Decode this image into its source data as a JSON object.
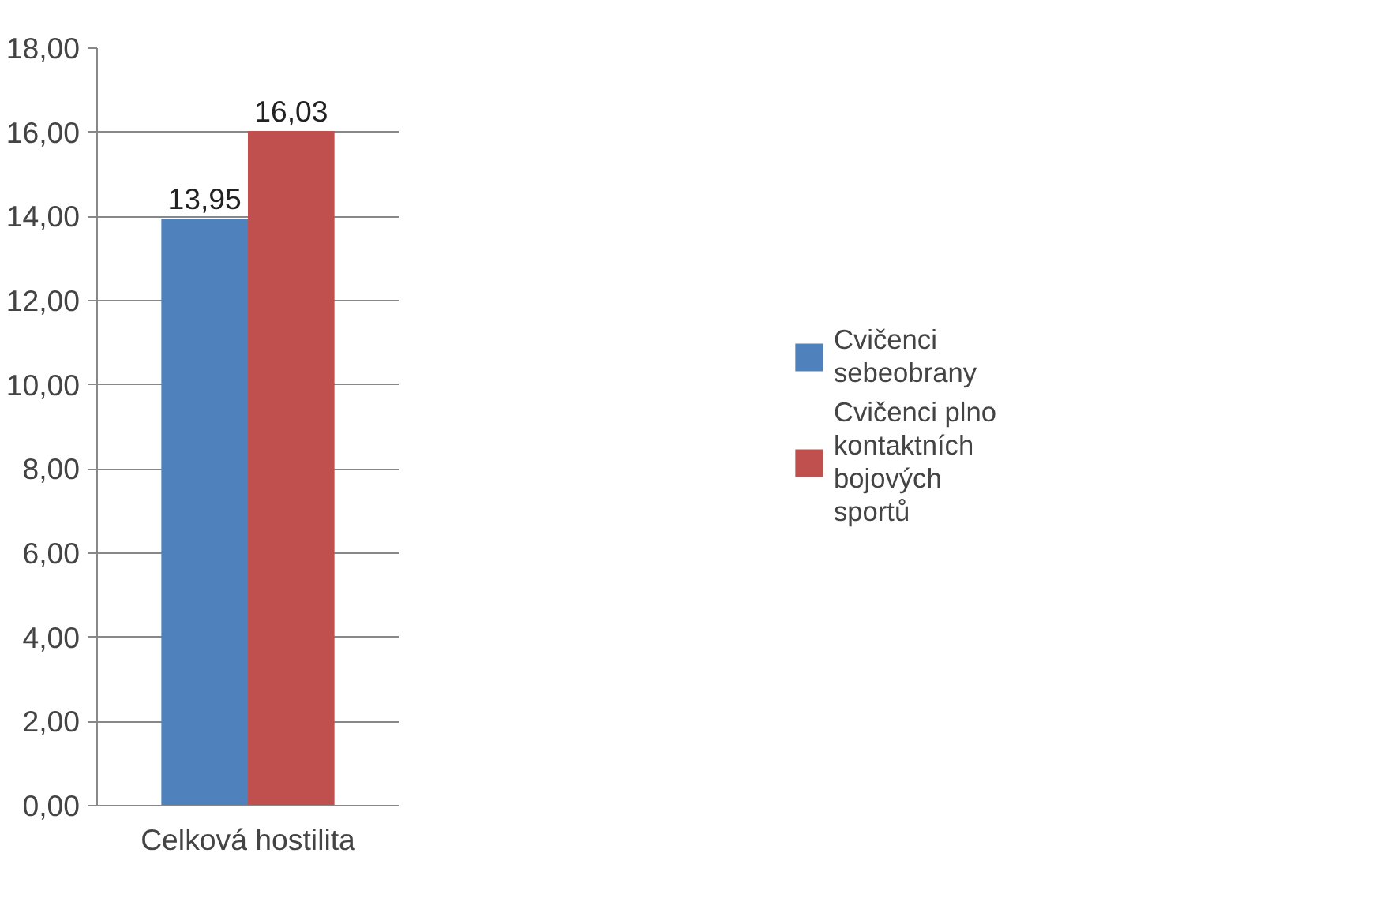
{
  "chart_data": {
    "type": "bar",
    "categories": [
      "Celková hostilita"
    ],
    "series": [
      {
        "name": "Cvičenci sebeobrany",
        "color": "#4f81bd",
        "values": [
          13.95
        ],
        "value_labels": [
          "13,95"
        ]
      },
      {
        "name": "Cvičenci plnokontaktních bojových sportů",
        "color": "#c0504d",
        "values": [
          16.03
        ],
        "value_labels": [
          "16,03"
        ]
      }
    ],
    "ylim": [
      0,
      18
    ],
    "yticks": [
      {
        "value": 0,
        "label": "0,00"
      },
      {
        "value": 2,
        "label": "2,00"
      },
      {
        "value": 4,
        "label": "4,00"
      },
      {
        "value": 6,
        "label": "6,00"
      },
      {
        "value": 8,
        "label": "8,00"
      },
      {
        "value": 10,
        "label": "10,00"
      },
      {
        "value": 12,
        "label": "12,00"
      },
      {
        "value": 14,
        "label": "14,00"
      },
      {
        "value": 16,
        "label": "16,00"
      },
      {
        "value": 18,
        "label": "18,00"
      }
    ],
    "grid": "y",
    "legend": "right"
  }
}
